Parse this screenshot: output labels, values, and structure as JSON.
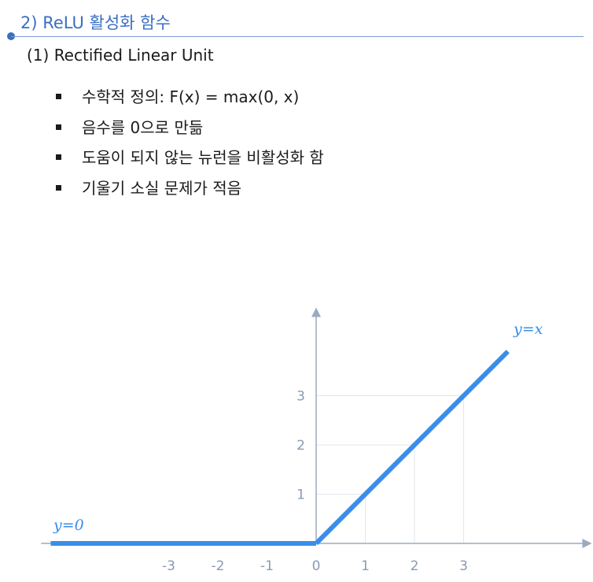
{
  "header": {
    "title": "2) ReLU 활성화 함수"
  },
  "subtitle": "(1) Rectified Linear Unit",
  "bullets": [
    "수학적 정의: F(x) = max(0, x)",
    "음수를 0으로 만듦",
    "도움이 되지 않는 뉴런을 비활성화 함",
    "기울기 소실 문제가 적음"
  ],
  "chart_data": {
    "type": "line",
    "title": "",
    "xlabel": "",
    "ylabel": "",
    "xlim": [
      -5.5,
      5.4
    ],
    "ylim": [
      0,
      4.6
    ],
    "x_ticks": [
      "-3",
      "-2",
      "-1",
      "0",
      "1",
      "2",
      "3"
    ],
    "y_ticks": [
      "1",
      "2",
      "3"
    ],
    "grid": true,
    "color": "#3a8ee8",
    "series": [
      {
        "name": "y=0",
        "x": [
          -5.4,
          0
        ],
        "y": [
          0,
          0
        ]
      },
      {
        "name": "y=x",
        "x": [
          0,
          3.9
        ],
        "y": [
          0,
          3.9
        ]
      }
    ],
    "annotations": [
      "y=0",
      "y=x"
    ]
  }
}
